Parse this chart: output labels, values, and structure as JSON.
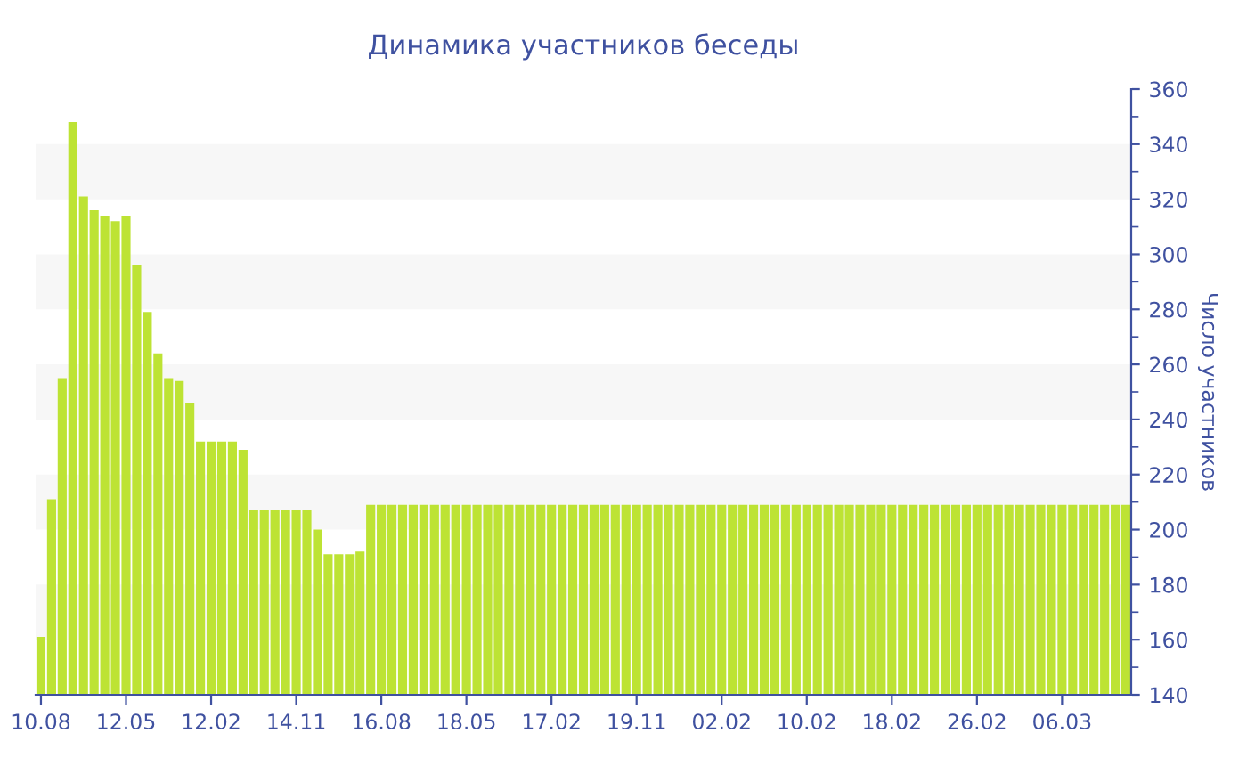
{
  "chart_data": {
    "type": "bar",
    "title": "Динамика участников беседы",
    "ylabel": "Число участников",
    "categories": [
      "10.08",
      null,
      null,
      null,
      null,
      null,
      null,
      null,
      "12.05",
      null,
      null,
      null,
      null,
      null,
      null,
      null,
      "12.02",
      null,
      null,
      null,
      null,
      null,
      null,
      null,
      "14.11",
      null,
      null,
      null,
      null,
      null,
      null,
      null,
      "16.08",
      null,
      null,
      null,
      null,
      null,
      null,
      null,
      "18.05",
      null,
      null,
      null,
      null,
      null,
      null,
      null,
      "17.02",
      null,
      null,
      null,
      null,
      null,
      null,
      null,
      "19.11",
      null,
      null,
      null,
      null,
      null,
      null,
      null,
      "02.02",
      null,
      null,
      null,
      null,
      null,
      null,
      null,
      "10.02",
      null,
      null,
      null,
      null,
      null,
      null,
      null,
      "18.02",
      null,
      null,
      null,
      null,
      null,
      null,
      null,
      "26.02",
      null,
      null,
      null,
      null,
      null,
      null,
      null,
      "06.03",
      null,
      null,
      null,
      null,
      null,
      null
    ],
    "values": [
      161,
      211,
      255,
      348,
      321,
      316,
      314,
      312,
      314,
      296,
      279,
      264,
      255,
      254,
      246,
      232,
      232,
      232,
      232,
      229,
      207,
      207,
      207,
      207,
      207,
      207,
      200,
      191,
      191,
      191,
      192,
      209,
      209,
      209,
      209,
      209,
      209,
      209,
      209,
      209,
      209,
      209,
      209,
      209,
      209,
      209,
      209,
      209,
      209,
      209,
      209,
      209,
      209,
      209,
      209,
      209,
      209,
      209,
      209,
      209,
      209,
      209,
      209,
      209,
      209,
      209,
      209,
      209,
      209,
      209,
      209,
      209,
      209,
      209,
      209,
      209,
      209,
      209,
      209,
      209,
      209,
      209,
      209,
      209,
      209,
      209,
      209,
      209,
      209,
      209,
      209,
      209,
      209,
      209,
      209,
      209,
      209,
      209,
      209,
      209,
      209,
      209,
      209
    ],
    "color": "#bde334",
    "ylim": [
      140,
      360
    ],
    "yticks": [
      140,
      160,
      180,
      200,
      220,
      240,
      260,
      280,
      300,
      320,
      340,
      360
    ],
    "bands": [
      {
        "axis": "y",
        "from": 160,
        "to": 180,
        "color": "#f7f7f7"
      },
      {
        "axis": "y",
        "from": 200,
        "to": 220,
        "color": "#f7f7f7"
      },
      {
        "axis": "y",
        "from": 240,
        "to": 260,
        "color": "#f7f7f7"
      },
      {
        "axis": "y",
        "from": 280,
        "to": 300,
        "color": "#f7f7f7"
      },
      {
        "axis": "y",
        "from": 320,
        "to": 340,
        "color": "#f7f7f7"
      }
    ]
  }
}
